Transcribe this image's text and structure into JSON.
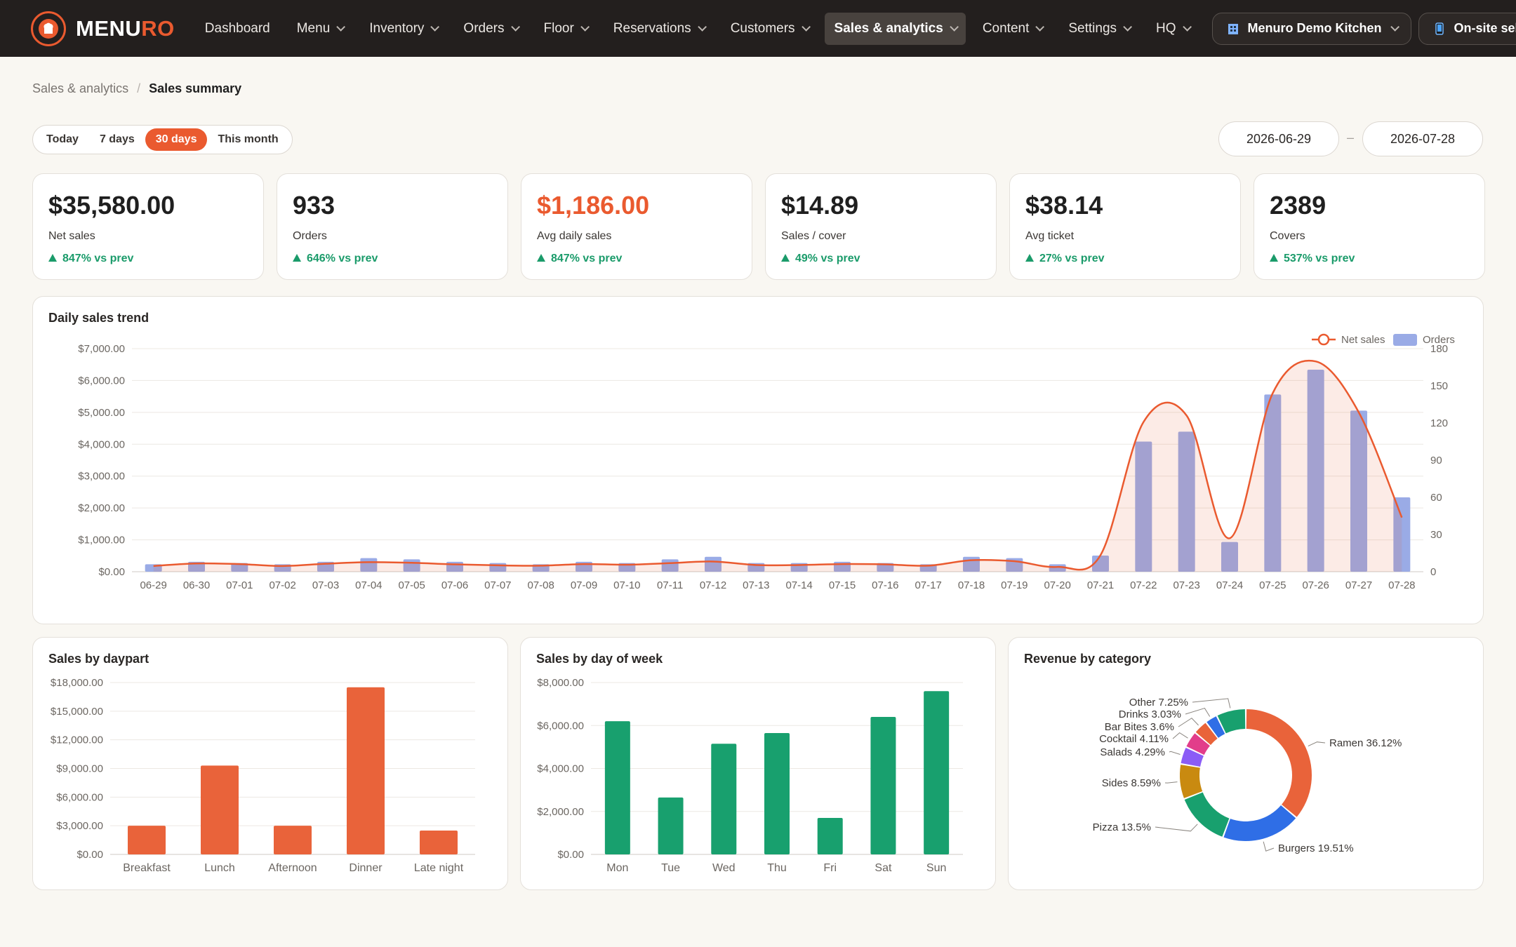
{
  "brand": {
    "part1": "MENU",
    "part2": "RO"
  },
  "nav": [
    {
      "label": "Dashboard",
      "chevron": false
    },
    {
      "label": "Menu",
      "chevron": true
    },
    {
      "label": "Inventory",
      "chevron": true
    },
    {
      "label": "Orders",
      "chevron": true
    },
    {
      "label": "Floor",
      "chevron": true
    },
    {
      "label": "Reservations",
      "chevron": true
    },
    {
      "label": "Customers",
      "chevron": true
    },
    {
      "label": "Sales & analytics",
      "chevron": true,
      "active": true
    },
    {
      "label": "Content",
      "chevron": true
    },
    {
      "label": "Settings",
      "chevron": true
    },
    {
      "label": "HQ",
      "chevron": true
    }
  ],
  "location_pill": {
    "label": "Menuro Demo Kitchen",
    "icon": "building-icon"
  },
  "selforder_pill": {
    "label": "On-site self-order",
    "icon": "tablet-icon"
  },
  "breadcrumb": {
    "parent": "Sales & analytics",
    "separator": "/",
    "current": "Sales summary"
  },
  "range": {
    "options": [
      "Today",
      "7 days",
      "30 days",
      "This month"
    ],
    "selected": "30 days"
  },
  "dates": {
    "start": "2026-06-29",
    "separator": "–",
    "end": "2026-07-28"
  },
  "colors": {
    "accent": "#ea5a2f",
    "positive": "#1a9b6a",
    "bars_orders": "#9aabe6",
    "daypart": "#e9633a",
    "weekday": "#18a06e"
  },
  "kpis": [
    {
      "value": "$35,580.00",
      "label": "Net sales",
      "delta": "847% vs prev",
      "accent": false
    },
    {
      "value": "933",
      "label": "Orders",
      "delta": "646% vs prev",
      "accent": false
    },
    {
      "value": "$1,186.00",
      "label": "Avg daily sales",
      "delta": "847% vs prev",
      "accent": true
    },
    {
      "value": "$14.89",
      "label": "Sales / cover",
      "delta": "49% vs prev",
      "accent": false
    },
    {
      "value": "$38.14",
      "label": "Avg ticket",
      "delta": "27% vs prev",
      "accent": false
    },
    {
      "value": "2389",
      "label": "Covers",
      "delta": "537% vs prev",
      "accent": false
    }
  ],
  "chart_data": [
    {
      "type": "line",
      "title": "Daily sales trend",
      "categories": [
        "06-29",
        "06-30",
        "07-01",
        "07-02",
        "07-03",
        "07-04",
        "07-05",
        "07-06",
        "07-07",
        "07-08",
        "07-09",
        "07-10",
        "07-11",
        "07-12",
        "07-13",
        "07-14",
        "07-15",
        "07-16",
        "07-17",
        "07-18",
        "07-19",
        "07-20",
        "07-21",
        "07-22",
        "07-23",
        "07-24",
        "07-25",
        "07-26",
        "07-27",
        "07-28"
      ],
      "series": [
        {
          "name": "Net sales",
          "kind": "line",
          "axis": "left",
          "values": [
            180,
            260,
            240,
            180,
            250,
            300,
            280,
            230,
            200,
            190,
            240,
            220,
            270,
            320,
            210,
            210,
            240,
            230,
            190,
            360,
            330,
            150,
            520,
            4700,
            4900,
            1050,
            5600,
            6600,
            5000,
            1700
          ]
        },
        {
          "name": "Orders",
          "kind": "bar",
          "axis": "right",
          "values": [
            6,
            8,
            7,
            6,
            8,
            11,
            10,
            8,
            7,
            6,
            8,
            7,
            10,
            12,
            7,
            7,
            8,
            7,
            6,
            12,
            11,
            6,
            13,
            105,
            113,
            24,
            143,
            163,
            130,
            60
          ]
        }
      ],
      "yticks_left": [
        "$0.00",
        "$1,000.00",
        "$2,000.00",
        "$3,000.00",
        "$4,000.00",
        "$5,000.00",
        "$6,000.00",
        "$7,000.00"
      ],
      "ylim_left": [
        0,
        7000
      ],
      "yticks_right": [
        "0",
        "30",
        "60",
        "90",
        "120",
        "150",
        "180"
      ],
      "ylim_right": [
        0,
        180
      ],
      "legend": "top-right",
      "grid": true
    },
    {
      "type": "bar",
      "title": "Sales by daypart",
      "categories": [
        "Breakfast",
        "Lunch",
        "Afternoon",
        "Dinner",
        "Late night"
      ],
      "values": [
        3000,
        9300,
        3000,
        17500,
        2500
      ],
      "yticks": [
        "$0.00",
        "$3,000.00",
        "$6,000.00",
        "$9,000.00",
        "$12,000.00",
        "$15,000.00",
        "$18,000.00"
      ],
      "ylim": [
        0,
        18000
      ]
    },
    {
      "type": "bar",
      "title": "Sales by day of week",
      "categories": [
        "Mon",
        "Tue",
        "Wed",
        "Thu",
        "Fri",
        "Sat",
        "Sun"
      ],
      "values": [
        6200,
        2650,
        5150,
        5650,
        1700,
        6400,
        7600
      ],
      "yticks": [
        "$0.00",
        "$2,000.00",
        "$4,000.00",
        "$6,000.00",
        "$8,000.00"
      ],
      "ylim": [
        0,
        8000
      ]
    },
    {
      "type": "pie",
      "title": "Revenue by category",
      "slices": [
        {
          "label": "Ramen",
          "pct": "36.12%",
          "value": 36.12,
          "color": "#e9633a"
        },
        {
          "label": "Burgers",
          "pct": "19.51%",
          "value": 19.51,
          "color": "#2f6ee6"
        },
        {
          "label": "Pizza",
          "pct": "13.5%",
          "value": 13.5,
          "color": "#18a06e"
        },
        {
          "label": "Sides",
          "pct": "8.59%",
          "value": 8.59,
          "color": "#c98a10"
        },
        {
          "label": "Salads",
          "pct": "4.29%",
          "value": 4.29,
          "color": "#8b5cf6"
        },
        {
          "label": "Cocktail",
          "pct": "4.11%",
          "value": 4.11,
          "color": "#e23d8a"
        },
        {
          "label": "Bar Bites",
          "pct": "3.6%",
          "value": 3.6,
          "color": "#e9633a"
        },
        {
          "label": "Drinks",
          "pct": "3.03%",
          "value": 3.03,
          "color": "#2f6ee6"
        },
        {
          "label": "Other",
          "pct": "7.25%",
          "value": 7.25,
          "color": "#18a06e"
        }
      ]
    }
  ]
}
